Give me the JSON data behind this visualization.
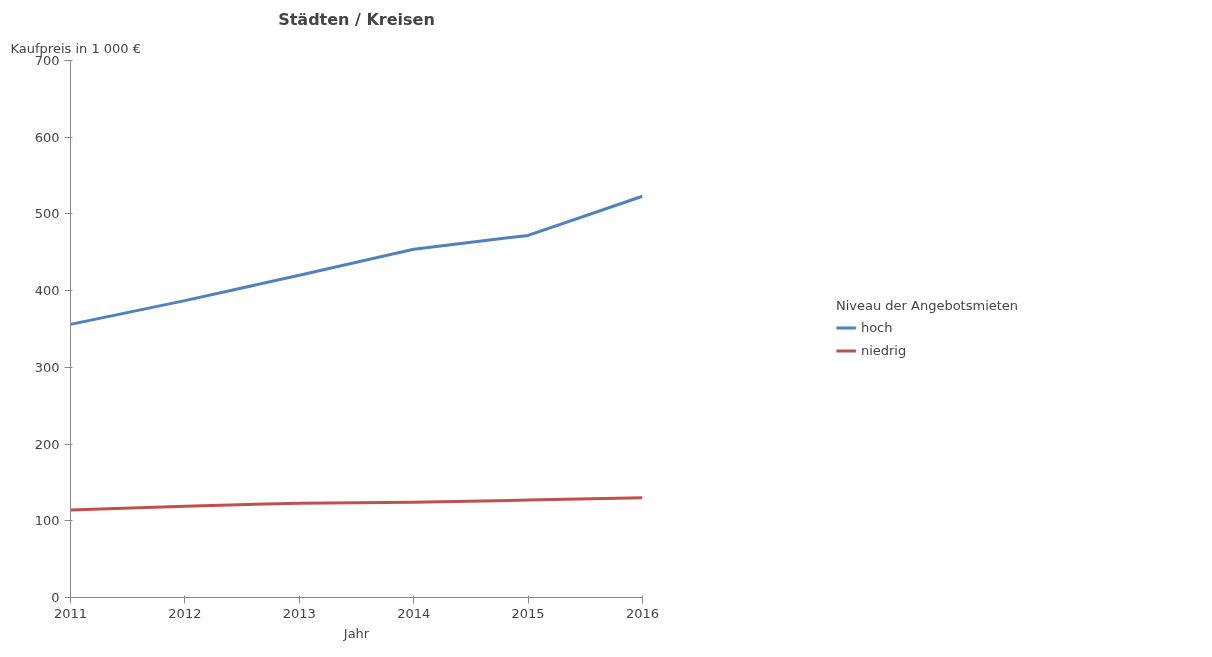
{
  "chart_data": {
    "type": "line",
    "title": "Städten / Kreisen",
    "xlabel": "Jahr",
    "ylabel": "Kaufpreis in 1 000 €",
    "legend_title": "Niveau der Angebotsmieten",
    "x": [
      2011,
      2012,
      2013,
      2014,
      2015,
      2016
    ],
    "series": [
      {
        "name": "hoch",
        "color": "#4f81bd",
        "values": [
          356,
          387,
          420,
          454,
          472,
          523
        ]
      },
      {
        "name": "niedrig",
        "color": "#c0504d",
        "values": [
          114,
          119,
          123,
          124,
          127,
          130
        ]
      }
    ],
    "xlim": [
      2011,
      2016
    ],
    "xticks": [
      2011,
      2012,
      2013,
      2014,
      2015,
      2016
    ],
    "ylim": [
      0,
      700
    ],
    "yticks": [
      0,
      100,
      200,
      300,
      400,
      500,
      600,
      700
    ],
    "grid": false,
    "legend": "right",
    "marker": "none",
    "line_style": "solid"
  }
}
